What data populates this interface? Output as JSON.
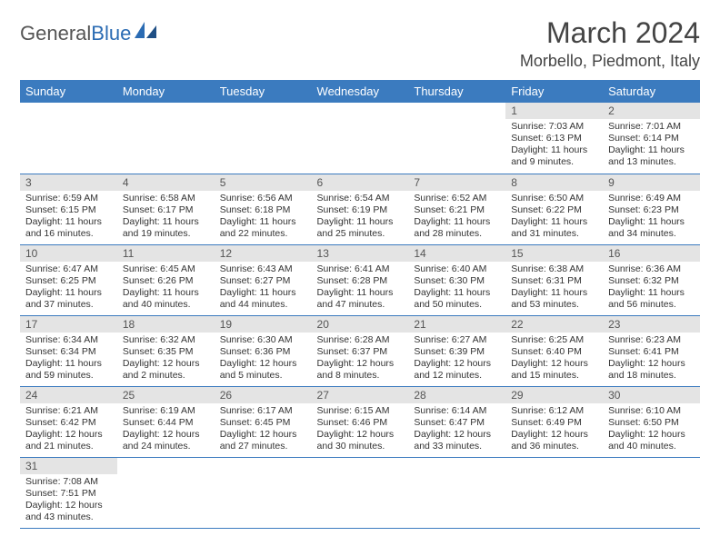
{
  "logo": {
    "general": "General",
    "blue": "Blue"
  },
  "title": "March 2024",
  "location": "Morbello, Piedmont, Italy",
  "colors": {
    "header_bg": "#3b7bbf",
    "header_text": "#ffffff",
    "daynum_bg": "#e4e4e4",
    "row_border": "#3b7bbf",
    "text": "#333333"
  },
  "day_headers": [
    "Sunday",
    "Monday",
    "Tuesday",
    "Wednesday",
    "Thursday",
    "Friday",
    "Saturday"
  ],
  "weeks": [
    [
      null,
      null,
      null,
      null,
      null,
      {
        "n": "1",
        "sr": "Sunrise: 7:03 AM",
        "ss": "Sunset: 6:13 PM",
        "dl": "Daylight: 11 hours and 9 minutes."
      },
      {
        "n": "2",
        "sr": "Sunrise: 7:01 AM",
        "ss": "Sunset: 6:14 PM",
        "dl": "Daylight: 11 hours and 13 minutes."
      }
    ],
    [
      {
        "n": "3",
        "sr": "Sunrise: 6:59 AM",
        "ss": "Sunset: 6:15 PM",
        "dl": "Daylight: 11 hours and 16 minutes."
      },
      {
        "n": "4",
        "sr": "Sunrise: 6:58 AM",
        "ss": "Sunset: 6:17 PM",
        "dl": "Daylight: 11 hours and 19 minutes."
      },
      {
        "n": "5",
        "sr": "Sunrise: 6:56 AM",
        "ss": "Sunset: 6:18 PM",
        "dl": "Daylight: 11 hours and 22 minutes."
      },
      {
        "n": "6",
        "sr": "Sunrise: 6:54 AM",
        "ss": "Sunset: 6:19 PM",
        "dl": "Daylight: 11 hours and 25 minutes."
      },
      {
        "n": "7",
        "sr": "Sunrise: 6:52 AM",
        "ss": "Sunset: 6:21 PM",
        "dl": "Daylight: 11 hours and 28 minutes."
      },
      {
        "n": "8",
        "sr": "Sunrise: 6:50 AM",
        "ss": "Sunset: 6:22 PM",
        "dl": "Daylight: 11 hours and 31 minutes."
      },
      {
        "n": "9",
        "sr": "Sunrise: 6:49 AM",
        "ss": "Sunset: 6:23 PM",
        "dl": "Daylight: 11 hours and 34 minutes."
      }
    ],
    [
      {
        "n": "10",
        "sr": "Sunrise: 6:47 AM",
        "ss": "Sunset: 6:25 PM",
        "dl": "Daylight: 11 hours and 37 minutes."
      },
      {
        "n": "11",
        "sr": "Sunrise: 6:45 AM",
        "ss": "Sunset: 6:26 PM",
        "dl": "Daylight: 11 hours and 40 minutes."
      },
      {
        "n": "12",
        "sr": "Sunrise: 6:43 AM",
        "ss": "Sunset: 6:27 PM",
        "dl": "Daylight: 11 hours and 44 minutes."
      },
      {
        "n": "13",
        "sr": "Sunrise: 6:41 AM",
        "ss": "Sunset: 6:28 PM",
        "dl": "Daylight: 11 hours and 47 minutes."
      },
      {
        "n": "14",
        "sr": "Sunrise: 6:40 AM",
        "ss": "Sunset: 6:30 PM",
        "dl": "Daylight: 11 hours and 50 minutes."
      },
      {
        "n": "15",
        "sr": "Sunrise: 6:38 AM",
        "ss": "Sunset: 6:31 PM",
        "dl": "Daylight: 11 hours and 53 minutes."
      },
      {
        "n": "16",
        "sr": "Sunrise: 6:36 AM",
        "ss": "Sunset: 6:32 PM",
        "dl": "Daylight: 11 hours and 56 minutes."
      }
    ],
    [
      {
        "n": "17",
        "sr": "Sunrise: 6:34 AM",
        "ss": "Sunset: 6:34 PM",
        "dl": "Daylight: 11 hours and 59 minutes."
      },
      {
        "n": "18",
        "sr": "Sunrise: 6:32 AM",
        "ss": "Sunset: 6:35 PM",
        "dl": "Daylight: 12 hours and 2 minutes."
      },
      {
        "n": "19",
        "sr": "Sunrise: 6:30 AM",
        "ss": "Sunset: 6:36 PM",
        "dl": "Daylight: 12 hours and 5 minutes."
      },
      {
        "n": "20",
        "sr": "Sunrise: 6:28 AM",
        "ss": "Sunset: 6:37 PM",
        "dl": "Daylight: 12 hours and 8 minutes."
      },
      {
        "n": "21",
        "sr": "Sunrise: 6:27 AM",
        "ss": "Sunset: 6:39 PM",
        "dl": "Daylight: 12 hours and 12 minutes."
      },
      {
        "n": "22",
        "sr": "Sunrise: 6:25 AM",
        "ss": "Sunset: 6:40 PM",
        "dl": "Daylight: 12 hours and 15 minutes."
      },
      {
        "n": "23",
        "sr": "Sunrise: 6:23 AM",
        "ss": "Sunset: 6:41 PM",
        "dl": "Daylight: 12 hours and 18 minutes."
      }
    ],
    [
      {
        "n": "24",
        "sr": "Sunrise: 6:21 AM",
        "ss": "Sunset: 6:42 PM",
        "dl": "Daylight: 12 hours and 21 minutes."
      },
      {
        "n": "25",
        "sr": "Sunrise: 6:19 AM",
        "ss": "Sunset: 6:44 PM",
        "dl": "Daylight: 12 hours and 24 minutes."
      },
      {
        "n": "26",
        "sr": "Sunrise: 6:17 AM",
        "ss": "Sunset: 6:45 PM",
        "dl": "Daylight: 12 hours and 27 minutes."
      },
      {
        "n": "27",
        "sr": "Sunrise: 6:15 AM",
        "ss": "Sunset: 6:46 PM",
        "dl": "Daylight: 12 hours and 30 minutes."
      },
      {
        "n": "28",
        "sr": "Sunrise: 6:14 AM",
        "ss": "Sunset: 6:47 PM",
        "dl": "Daylight: 12 hours and 33 minutes."
      },
      {
        "n": "29",
        "sr": "Sunrise: 6:12 AM",
        "ss": "Sunset: 6:49 PM",
        "dl": "Daylight: 12 hours and 36 minutes."
      },
      {
        "n": "30",
        "sr": "Sunrise: 6:10 AM",
        "ss": "Sunset: 6:50 PM",
        "dl": "Daylight: 12 hours and 40 minutes."
      }
    ],
    [
      {
        "n": "31",
        "sr": "Sunrise: 7:08 AM",
        "ss": "Sunset: 7:51 PM",
        "dl": "Daylight: 12 hours and 43 minutes."
      },
      null,
      null,
      null,
      null,
      null,
      null
    ]
  ]
}
